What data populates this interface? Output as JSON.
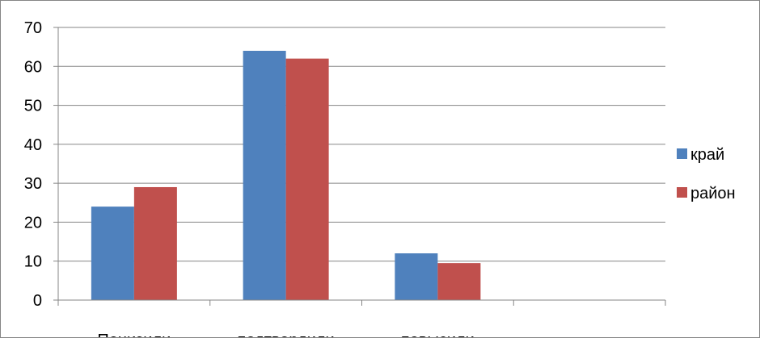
{
  "chart_data": {
    "type": "bar",
    "categories": [
      "Понизили",
      "подтвердили",
      "повысили",
      ""
    ],
    "series": [
      {
        "name": "край",
        "color": "#4F81BD",
        "values": [
          24,
          64,
          12,
          null
        ]
      },
      {
        "name": "район",
        "color": "#C0504D",
        "values": [
          29,
          62,
          9.5,
          null
        ]
      }
    ],
    "ylim": [
      0,
      70
    ],
    "yticks": [
      0,
      10,
      20,
      30,
      40,
      50,
      60,
      70
    ],
    "grid": true,
    "legend": "right",
    "title": "",
    "xlabel": "",
    "ylabel": ""
  },
  "colors": {
    "gridline": "#868686",
    "axis": "#868686",
    "frame": "#868686"
  }
}
